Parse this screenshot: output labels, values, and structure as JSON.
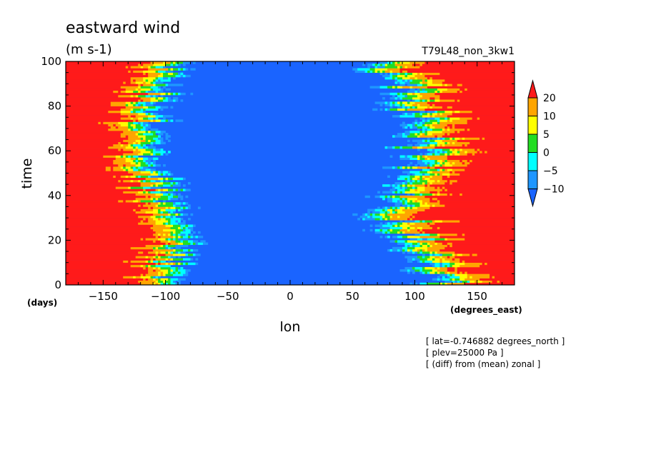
{
  "chart_data": {
    "type": "heatmap",
    "title": "eastward wind",
    "units": "(m s-1)",
    "run_label": "T79L48_non_3kw1",
    "xlabel": "lon",
    "ylabel": "time",
    "x_unit": "(degrees_east)",
    "y_unit": "(days)",
    "xlim": [
      -180,
      180
    ],
    "ylim": [
      0,
      100
    ],
    "x_ticks": [
      -150,
      -100,
      -50,
      0,
      50,
      100,
      150
    ],
    "y_ticks": [
      0,
      20,
      40,
      60,
      80,
      100
    ],
    "colorbar": {
      "levels": [
        -10,
        -5,
        0,
        5,
        10,
        20
      ],
      "colors": [
        "#1a64ff",
        "#1e96ff",
        "#00ffff",
        "#22dd22",
        "#ffff00",
        "#ffa500",
        "#ff1a1a"
      ]
    },
    "pattern": "positive anomalies (>20) west of ~-100 and east of ~110; negative (<-10) from ~-90 to ~80; transition bands with eastward-propagating streaks",
    "notes": [
      "[ lat=-0.746882 degrees_north ]",
      "[ plev=25000 Pa ]",
      "[ (diff) from (mean) zonal ]"
    ]
  }
}
